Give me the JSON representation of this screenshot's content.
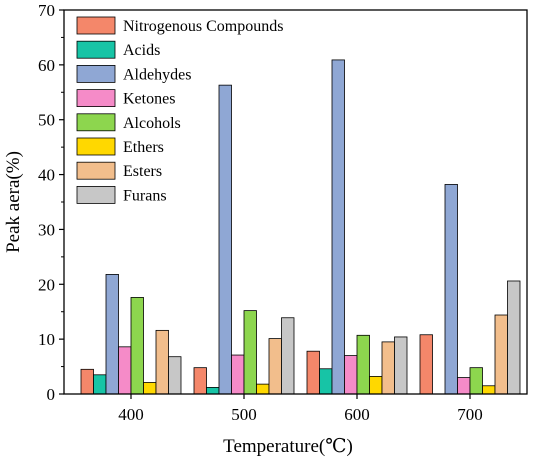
{
  "chart_data": {
    "type": "bar",
    "title": "",
    "xlabel": "Temperature(℃)",
    "ylabel": "Peak aera(%)",
    "categories": [
      "400",
      "500",
      "600",
      "700"
    ],
    "ylim": [
      0,
      70
    ],
    "yticks": [
      "0",
      "10",
      "20",
      "30",
      "40",
      "50",
      "60",
      "70"
    ],
    "legend_position": "top-left",
    "grid": false,
    "series": [
      {
        "name": "Nitrogenous Compounds",
        "color": "#F4876A",
        "values": [
          4.5,
          4.8,
          7.8,
          10.8
        ]
      },
      {
        "name": "Acids",
        "color": "#17C4A6",
        "values": [
          3.5,
          1.2,
          4.6,
          0
        ]
      },
      {
        "name": "Aldehydes",
        "color": "#8FA7D4",
        "values": [
          21.8,
          56.3,
          60.9,
          38.2
        ]
      },
      {
        "name": "Ketones",
        "color": "#F58BC8",
        "values": [
          8.6,
          7.1,
          7.0,
          3.0
        ]
      },
      {
        "name": "Alcohols",
        "color": "#8DD64E",
        "values": [
          17.6,
          15.2,
          10.7,
          4.8
        ]
      },
      {
        "name": "Ethers",
        "color": "#FFD800",
        "values": [
          2.1,
          1.8,
          3.2,
          1.5
        ]
      },
      {
        "name": "Esters",
        "color": "#F2BE8C",
        "values": [
          11.6,
          10.1,
          9.5,
          14.4
        ]
      },
      {
        "name": "Furans",
        "color": "#C7C7C7",
        "values": [
          6.8,
          13.9,
          10.4,
          20.6
        ]
      }
    ]
  }
}
